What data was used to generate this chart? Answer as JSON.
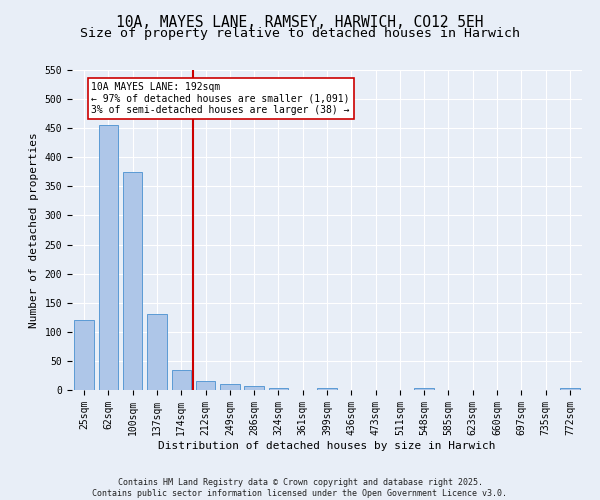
{
  "title": "10A, MAYES LANE, RAMSEY, HARWICH, CO12 5EH",
  "subtitle": "Size of property relative to detached houses in Harwich",
  "xlabel": "Distribution of detached houses by size in Harwich",
  "ylabel": "Number of detached properties",
  "categories": [
    "25sqm",
    "62sqm",
    "100sqm",
    "137sqm",
    "174sqm",
    "212sqm",
    "249sqm",
    "286sqm",
    "324sqm",
    "361sqm",
    "399sqm",
    "436sqm",
    "473sqm",
    "511sqm",
    "548sqm",
    "585sqm",
    "623sqm",
    "660sqm",
    "697sqm",
    "735sqm",
    "772sqm"
  ],
  "values": [
    120,
    455,
    375,
    130,
    35,
    15,
    10,
    7,
    4,
    0,
    3,
    0,
    0,
    0,
    4,
    0,
    0,
    0,
    0,
    0,
    3
  ],
  "bar_color": "#aec6e8",
  "bar_edge_color": "#5b9bd5",
  "vline_x_index": 4.5,
  "vline_color": "#cc0000",
  "annotation_line1": "10A MAYES LANE: 192sqm",
  "annotation_line2": "← 97% of detached houses are smaller (1,091)",
  "annotation_line3": "3% of semi-detached houses are larger (38) →",
  "annotation_box_color": "#cc0000",
  "ylim": [
    0,
    550
  ],
  "yticks": [
    0,
    50,
    100,
    150,
    200,
    250,
    300,
    350,
    400,
    450,
    500,
    550
  ],
  "footer_text": "Contains HM Land Registry data © Crown copyright and database right 2025.\nContains public sector information licensed under the Open Government Licence v3.0.",
  "background_color": "#e8eef7",
  "plot_background_color": "#e8eef7",
  "title_fontsize": 10.5,
  "subtitle_fontsize": 9.5,
  "axis_label_fontsize": 8,
  "tick_fontsize": 7,
  "annotation_fontsize": 7,
  "footer_fontsize": 6
}
